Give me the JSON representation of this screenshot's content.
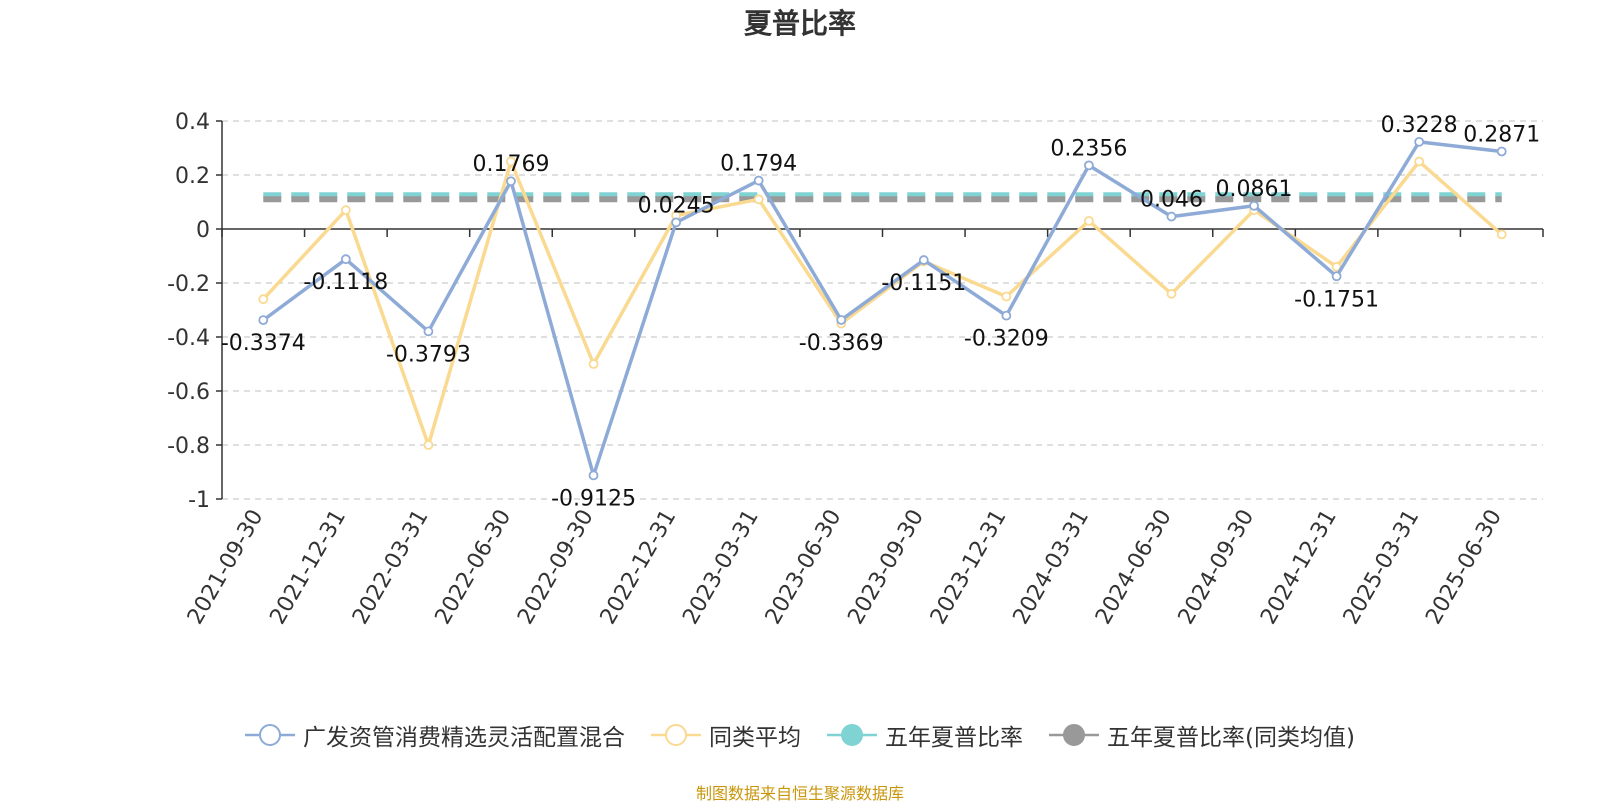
{
  "chart_data": {
    "type": "line",
    "title": "夏普比率",
    "categories": [
      "2021-09-30",
      "2021-12-31",
      "2022-03-31",
      "2022-06-30",
      "2022-09-30",
      "2022-12-31",
      "2023-03-31",
      "2023-06-30",
      "2023-09-30",
      "2023-12-31",
      "2024-03-31",
      "2024-06-30",
      "2024-09-30",
      "2024-12-31",
      "2025-03-31",
      "2025-06-30"
    ],
    "ylim": [
      -1,
      0.4
    ],
    "yticks": [
      "0.4",
      "0.2",
      "0",
      "-0.2",
      "-0.4",
      "-0.6",
      "-0.8",
      "-1"
    ],
    "series": [
      {
        "name": "广发资管消费精选灵活配置混合",
        "color": "#8eaad7",
        "values": [
          -0.3374,
          -0.1118,
          -0.3793,
          0.1769,
          -0.9125,
          0.0245,
          0.1794,
          -0.3369,
          -0.1151,
          -0.3209,
          0.2356,
          0.046,
          0.0861,
          -0.1751,
          0.3228,
          0.2871
        ],
        "labels": [
          "-0.3374",
          "-0.1118",
          "-0.3793",
          "0.1769",
          "-0.9125",
          "0.0245",
          "0.1794",
          "-0.3369",
          "-0.1151",
          "-0.3209",
          "0.2356",
          "0.046",
          "0.0861",
          "-0.1751",
          "0.3228",
          "0.2871"
        ]
      },
      {
        "name": "同类平均",
        "color": "#fad991",
        "values": [
          -0.26,
          0.07,
          -0.8,
          0.25,
          -0.5,
          0.05,
          0.11,
          -0.35,
          -0.12,
          -0.25,
          0.03,
          -0.24,
          0.07,
          -0.14,
          0.25,
          -0.02
        ]
      },
      {
        "name": "五年夏普比率",
        "color": "#7fd3d3",
        "dashed": true,
        "values_constant": 0.125
      },
      {
        "name": "五年夏普比率(同类均值)",
        "color": "#999999",
        "dashed": true,
        "values_constant": 0.11
      }
    ],
    "grid": true,
    "legend_position": "bottom"
  },
  "legend": [
    {
      "label": "广发资管消费精选灵活配置混合",
      "color": "#8eaad7",
      "filled": false
    },
    {
      "label": "同类平均",
      "color": "#fad991",
      "filled": false
    },
    {
      "label": "五年夏普比率",
      "color": "#7fd3d3",
      "filled": true
    },
    {
      "label": "五年夏普比率(同类均值)",
      "color": "#999999",
      "filled": true
    }
  ],
  "source_note": "制图数据来自恒生聚源数据库"
}
